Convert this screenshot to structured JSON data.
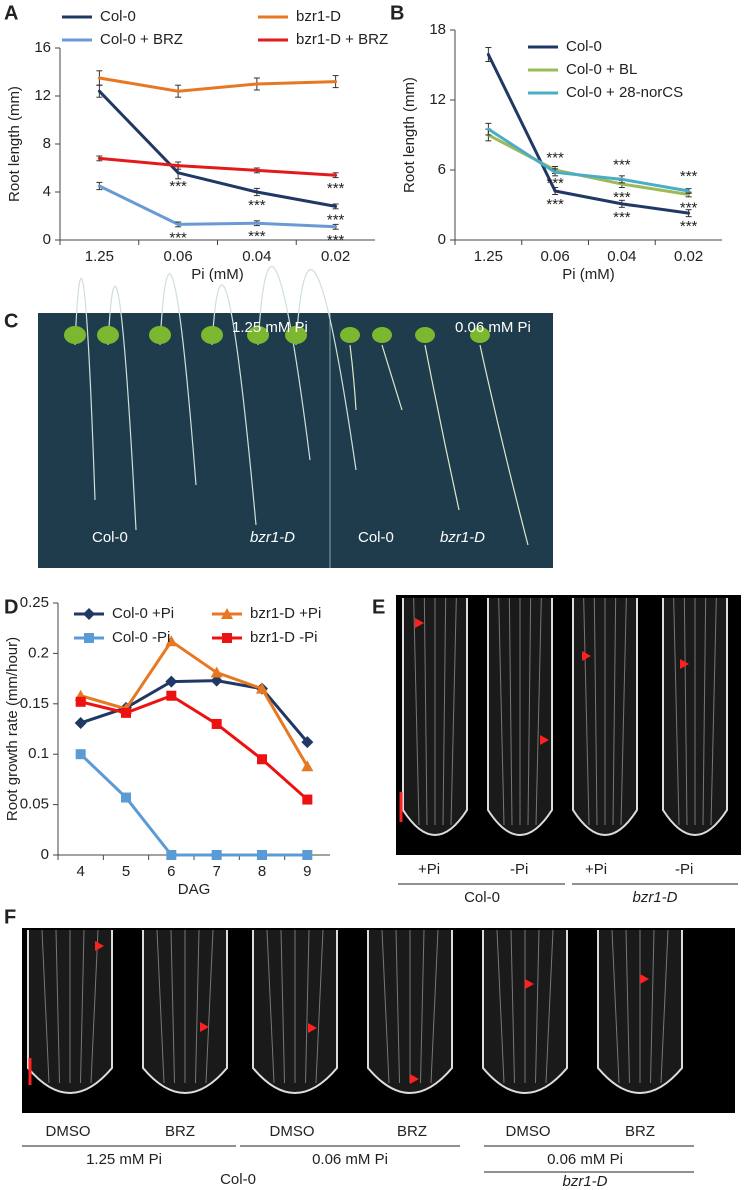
{
  "panel_labels": [
    "A",
    "B",
    "C",
    "D",
    "E",
    "F"
  ],
  "chart_data": [
    {
      "type": "line",
      "categories": [
        "1.25",
        "0.06",
        "0.04",
        "0.02"
      ],
      "xlabel": "Pi (mM)",
      "ylabel": "Root length (mm)",
      "ylim": [
        0,
        16
      ],
      "yticks": [
        0,
        4,
        8,
        12,
        16
      ],
      "series": [
        {
          "name": "Col-0",
          "color": "#1f3864",
          "values": [
            12.4,
            5.6,
            4.0,
            2.8
          ],
          "errors": [
            0.5,
            0.5,
            0.3,
            0.2
          ],
          "significance": [
            null,
            "***",
            "***",
            "***"
          ]
        },
        {
          "name": "bzr1-D",
          "color": "#e87722",
          "values": [
            13.5,
            12.4,
            13.0,
            13.2
          ],
          "errors": [
            0.6,
            0.5,
            0.5,
            0.5
          ]
        },
        {
          "name": "Col-0 + BRZ",
          "color": "#6a9ad6",
          "values": [
            4.5,
            1.3,
            1.4,
            1.1
          ],
          "errors": [
            0.3,
            0.2,
            0.2,
            0.2
          ],
          "significance": [
            null,
            "***",
            "***",
            "***"
          ]
        },
        {
          "name": "bzr1-D + BRZ",
          "color": "#e31a1c",
          "values": [
            6.8,
            6.2,
            5.8,
            5.4
          ],
          "errors": [
            0.2,
            0.3,
            0.2,
            0.2
          ],
          "significance": [
            null,
            null,
            null,
            "***"
          ]
        }
      ]
    },
    {
      "type": "line",
      "categories": [
        "1.25",
        "0.06",
        "0.04",
        "0.02"
      ],
      "xlabel": "Pi (mM)",
      "ylabel": "Root length (mm)",
      "ylim": [
        0,
        18
      ],
      "yticks": [
        0,
        6,
        12,
        18
      ],
      "series": [
        {
          "name": "Col-0",
          "color": "#1f3864",
          "values": [
            15.9,
            4.2,
            3.1,
            2.3
          ],
          "errors": [
            0.6,
            0.3,
            0.3,
            0.3
          ],
          "significance": [
            null,
            "***",
            "***",
            "***"
          ]
        },
        {
          "name": "Col-0  + BL",
          "color": "#9bbb59",
          "values": [
            9.0,
            6.0,
            4.8,
            3.9
          ],
          "errors": [
            0.5,
            0.3,
            0.3,
            0.2
          ],
          "significance": [
            null,
            "***",
            "***",
            "***"
          ]
        },
        {
          "name": "Col-0 + 28-norCS",
          "color": "#4bacc6",
          "values": [
            9.5,
            5.8,
            5.2,
            4.2
          ],
          "errors": [
            0.5,
            0.3,
            0.3,
            0.2
          ],
          "significance": [
            null,
            "***",
            "***",
            "***"
          ]
        }
      ]
    },
    {
      "type": "line",
      "categories": [
        "4",
        "5",
        "6",
        "7",
        "8",
        "9"
      ],
      "xlabel": "DAG",
      "ylabel": "Root growth rate (mm/hour)",
      "ylim": [
        0,
        0.25
      ],
      "yticks": [
        0,
        0.05,
        0.1,
        0.15,
        0.2,
        0.25
      ],
      "series": [
        {
          "name": "Col-0 +Pi",
          "color": "#1f3864",
          "marker": "diamond",
          "values": [
            0.131,
            0.146,
            0.172,
            0.173,
            0.165,
            0.112
          ]
        },
        {
          "name": "bzr1-D +Pi",
          "color": "#e87722",
          "marker": "triangle",
          "values": [
            0.158,
            0.145,
            0.212,
            0.181,
            0.165,
            0.088
          ]
        },
        {
          "name": "Col-0 -Pi",
          "color": "#5b9bd5",
          "marker": "square",
          "values": [
            0.1,
            0.057,
            0,
            0,
            0,
            0
          ]
        },
        {
          "name": "bzr1-D -Pi",
          "color": "#ee1111",
          "marker": "square",
          "values": [
            0.152,
            0.141,
            0.158,
            0.13,
            0.095,
            0.055
          ]
        }
      ]
    }
  ],
  "panel_c": {
    "conditions": [
      "1.25 mM Pi",
      "0.06 mM Pi"
    ],
    "genotypes": [
      "Col-0",
      "bzr1-D",
      "Col-0",
      "bzr1-D"
    ]
  },
  "panel_e": {
    "treatments": [
      "+Pi",
      "-Pi",
      "+Pi",
      "-Pi"
    ],
    "genotypes": [
      "Col-0",
      "bzr1-D"
    ]
  },
  "panel_f": {
    "treatments": [
      "DMSO",
      "BRZ",
      "DMSO",
      "BRZ",
      "DMSO",
      "BRZ"
    ],
    "conditions": [
      "1.25 mM Pi",
      "0.06 mM Pi",
      "0.06 mM Pi"
    ],
    "genotypes": [
      "Col-0",
      "bzr1-D"
    ]
  }
}
